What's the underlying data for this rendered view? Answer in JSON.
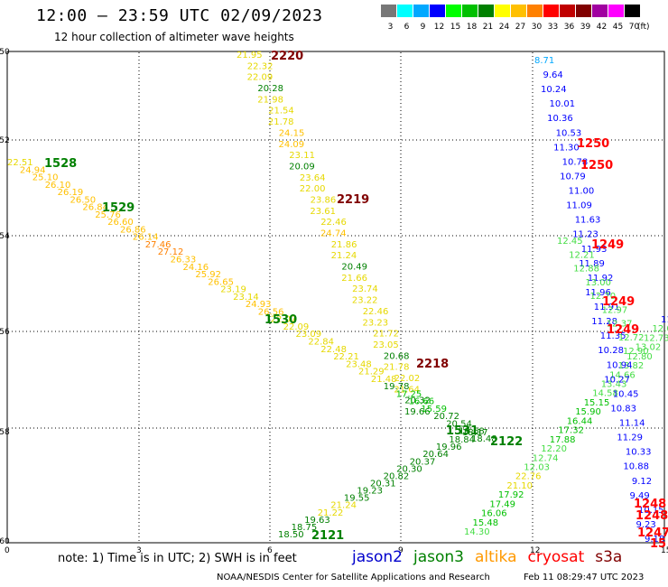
{
  "header": {
    "title": "12:00 — 23:59 UTC 02/09/2023",
    "subtitle": "12 hour collection of altimeter wave heights"
  },
  "legend": {
    "unit": "(ft)",
    "bins": [
      {
        "label": "3",
        "color": "#777777"
      },
      {
        "label": "6",
        "color": "#00ffff"
      },
      {
        "label": "9",
        "color": "#00a8ff"
      },
      {
        "label": "12",
        "color": "#0000ff"
      },
      {
        "label": "15",
        "color": "#00ff00"
      },
      {
        "label": "18",
        "color": "#00c000"
      },
      {
        "label": "21",
        "color": "#008000"
      },
      {
        "label": "24",
        "color": "#ffff00"
      },
      {
        "label": "27",
        "color": "#ffc000"
      },
      {
        "label": "30",
        "color": "#ff8000"
      },
      {
        "label": "33",
        "color": "#ff0000"
      },
      {
        "label": "36",
        "color": "#c00000"
      },
      {
        "label": "39",
        "color": "#800000"
      },
      {
        "label": "42",
        "color": "#a000a0"
      },
      {
        "label": "45",
        "color": "#ff00ff"
      },
      {
        "label": "70",
        "color": "#000000"
      }
    ]
  },
  "map": {
    "lon_ticks": [
      "0",
      "3",
      "6",
      "9",
      "12",
      "15"
    ],
    "lat_ticks": [
      "-50",
      "-52",
      "-54",
      "-56",
      "-58",
      "-60"
    ],
    "pass_labels": [
      {
        "id": "2220",
        "color": "#800000"
      },
      {
        "id": "2219",
        "color": "#800000"
      },
      {
        "id": "2218",
        "color": "#800000"
      },
      {
        "id": "1528",
        "color": "#008000"
      },
      {
        "id": "1529",
        "color": "#008000"
      },
      {
        "id": "1530",
        "color": "#008000"
      },
      {
        "id": "1531",
        "color": "#008000"
      },
      {
        "id": "2122",
        "color": "#008000"
      },
      {
        "id": "2121",
        "color": "#008000"
      },
      {
        "id": "1250",
        "color": "#ff0000"
      },
      {
        "id": "1250",
        "color": "#ff0000"
      },
      {
        "id": "1249",
        "color": "#ff0000"
      },
      {
        "id": "1249",
        "color": "#ff0000"
      },
      {
        "id": "1249",
        "color": "#ff0000"
      },
      {
        "id": "1248",
        "color": "#ff0000"
      },
      {
        "id": "1248",
        "color": "#ff0000"
      },
      {
        "id": "1247",
        "color": "#ff0000"
      },
      {
        "id": "15",
        "color": "#ff0000"
      }
    ],
    "tracks": {
      "track_2220": [
        "21.95",
        "22.32",
        "22.09",
        "20.28",
        "21.98",
        "21.54",
        "21.78",
        "24.15",
        "24.09",
        "23.11",
        "20.09",
        "23.64",
        "22.00",
        "23.86",
        "23.61",
        "22.46",
        "24.74",
        "21.86",
        "21.24",
        "20.49",
        "21.66",
        "23.74",
        "23.22",
        "22.46",
        "23.23",
        "21.72",
        "23.05",
        "20.68",
        "21.78",
        "22.02",
        "21.64",
        "20.32",
        "19.66"
      ],
      "track_1528": [
        "22.51",
        "24.94",
        "25.10",
        "26.10",
        "26.19",
        "26.50",
        "26.84",
        "25.76",
        "26.60",
        "26.86",
        "26.14",
        "27.46",
        "27.12",
        "26.33",
        "24.16",
        "25.92",
        "26.65",
        "23.19",
        "23.14",
        "24.93",
        "26.56",
        "22.07",
        "22.09",
        "23.09",
        "22.84",
        "22.48",
        "22.21",
        "23.48",
        "21.29",
        "21.48",
        "19.78",
        "17.25",
        "16.66",
        "15.59",
        "20.72",
        "20.54",
        "19.68",
        "18.48"
      ],
      "track_2121": [
        "18.50",
        "18.75",
        "19.63",
        "21.22",
        "21.24",
        "19.55",
        "19.23",
        "20.31",
        "20.82",
        "20.30",
        "20.37",
        "20.64",
        "19.96",
        "18.84",
        "18.17"
      ],
      "track_2122": [
        "14.30",
        "15.48",
        "16.06",
        "17.49",
        "17.92",
        "21.10",
        "22.76",
        "12.03",
        "12.74",
        "12.20",
        "17.88",
        "17.32",
        "16.44",
        "15.90",
        "15.15",
        "14.58",
        "13.43",
        "14.66",
        "13.82",
        "12.80",
        "13.02",
        "12.73",
        "12.08",
        "11.8"
      ],
      "track_1250": [
        "8.71",
        "9.64",
        "10.24",
        "10.01",
        "10.36",
        "10.53",
        "11.30",
        "10.78",
        "10.79",
        "11.00",
        "11.09",
        "11.63",
        "11.23",
        "11.93",
        "11.89",
        "11.92",
        "11.96",
        "11.91",
        "11.28",
        "11.35",
        "10.28",
        "10.94",
        "10.27",
        "10.45",
        "10.83",
        "11.14",
        "11.29",
        "10.33",
        "10.88",
        "9.12",
        "9.49",
        "10.15",
        "9.23",
        "9.18"
      ],
      "track_1249": [
        "12.45",
        "12.21",
        "12.88",
        "13.00",
        "12.70",
        "12.97",
        "12.37",
        "12.72",
        "12.90"
      ]
    }
  },
  "footer": {
    "note": "note: 1) Time is in UTC; 2) SWH is in feet",
    "satellites": [
      {
        "name": "jason2",
        "color": "#0000cc"
      },
      {
        "name": "jason3",
        "color": "#008000"
      },
      {
        "name": "altika",
        "color": "#ff9900"
      },
      {
        "name": "cryosat",
        "color": "#ff0000"
      },
      {
        "name": "s3a",
        "color": "#800000"
      }
    ],
    "credit": "NOAA/NESDIS Center for Satellite Applications and Research",
    "timestamp": "Feb 11 08:29:47 UTC 2023"
  }
}
